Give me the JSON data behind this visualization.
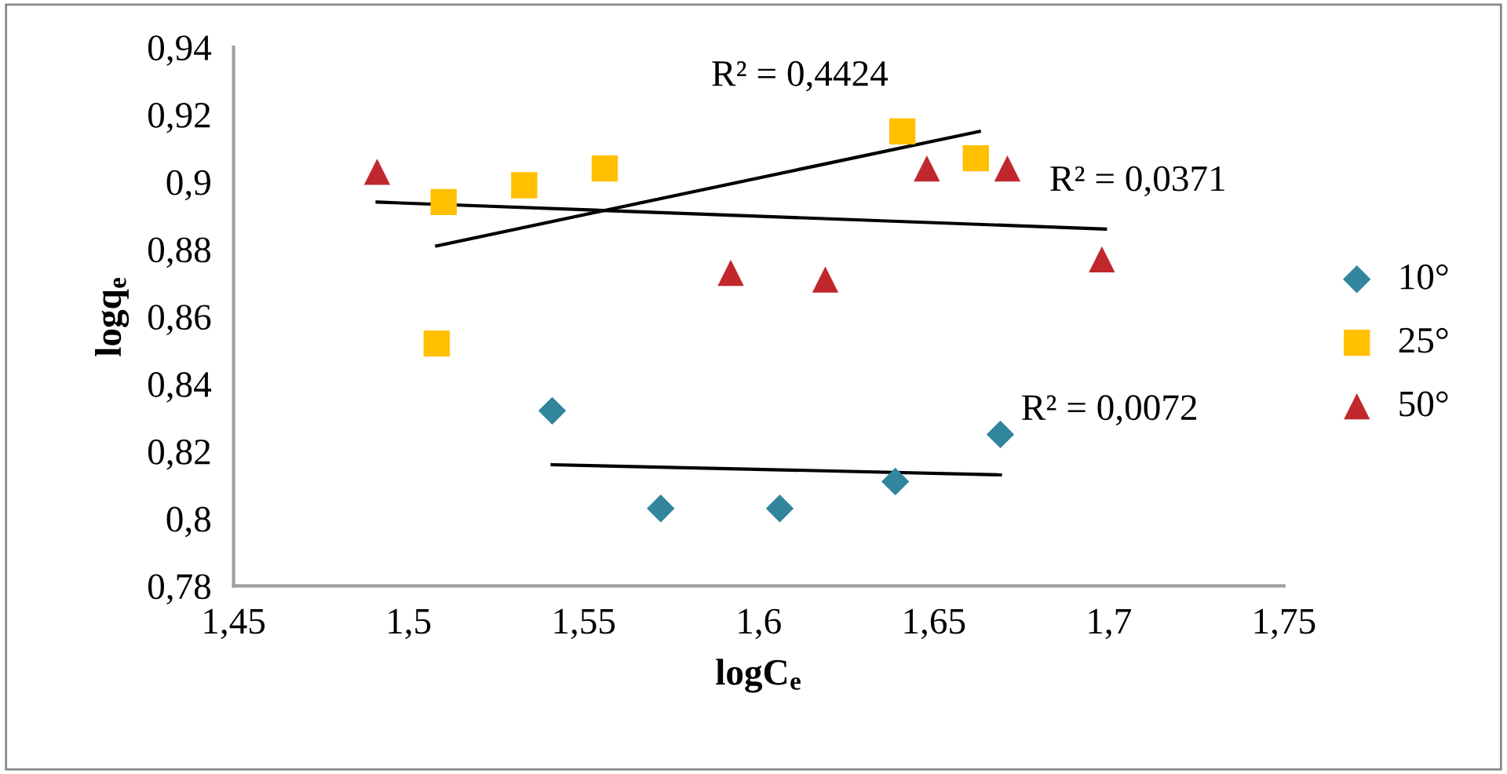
{
  "chart_data": {
    "type": "scatter",
    "xlabel": "logC$_{e}$",
    "ylabel": "logq$_{e}$",
    "xlim": [
      1.45,
      1.75
    ],
    "ylim": [
      0.78,
      0.94
    ],
    "xticks": [
      {
        "value": 1.45,
        "label": "1,45"
      },
      {
        "value": 1.5,
        "label": "1,5"
      },
      {
        "value": 1.55,
        "label": "1,55"
      },
      {
        "value": 1.6,
        "label": "1,6"
      },
      {
        "value": 1.65,
        "label": "1,65"
      },
      {
        "value": 1.7,
        "label": "1,7"
      },
      {
        "value": 1.75,
        "label": "1,75"
      }
    ],
    "yticks": [
      {
        "value": 0.78,
        "label": "0,78"
      },
      {
        "value": 0.8,
        "label": "0,8"
      },
      {
        "value": 0.82,
        "label": "0,82"
      },
      {
        "value": 0.84,
        "label": "0,84"
      },
      {
        "value": 0.86,
        "label": "0,86"
      },
      {
        "value": 0.88,
        "label": "0,88"
      },
      {
        "value": 0.9,
        "label": "0,9"
      },
      {
        "value": 0.92,
        "label": "0,92"
      },
      {
        "value": 0.94,
        "label": "0,94"
      }
    ],
    "grid": false,
    "legend": "right",
    "series": [
      {
        "name": "10°",
        "color": "#31859c",
        "marker": "diamond",
        "x": [
          1.541,
          1.572,
          1.606,
          1.639,
          1.669
        ],
        "values": [
          0.832,
          0.803,
          0.803,
          0.811,
          0.825
        ]
      },
      {
        "name": "25°",
        "color": "#ffc000",
        "marker": "square",
        "x": [
          1.51,
          1.508,
          1.533,
          1.556,
          1.641,
          1.662
        ],
        "values": [
          0.894,
          0.852,
          0.899,
          0.904,
          0.915,
          0.907
        ]
      },
      {
        "name": "50°",
        "color": "#c0282d",
        "marker": "triangle",
        "x": [
          1.491,
          1.592,
          1.619,
          1.648,
          1.671,
          1.698
        ],
        "values": [
          0.903,
          0.873,
          0.871,
          0.904,
          0.904,
          0.877
        ]
      },
      {
        "type": "line",
        "color": "#000000",
        "x": [
          1.541,
          1.669
        ],
        "values": [
          0.816,
          0.813
        ]
      },
      {
        "type": "line",
        "color": "#000000",
        "x": [
          1.508,
          1.663
        ],
        "values": [
          0.881,
          0.915
        ]
      },
      {
        "type": "line",
        "color": "#000000",
        "x": [
          1.491,
          1.699
        ],
        "values": [
          0.894,
          0.886
        ]
      }
    ],
    "annotations": [
      "R² = 0,4424",
      "R² = 0,0371",
      "R² = 0,0072"
    ]
  }
}
